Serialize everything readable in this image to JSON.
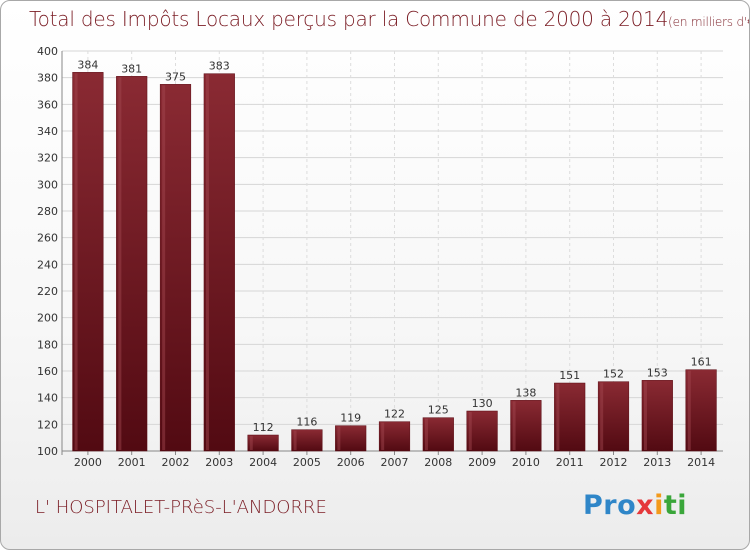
{
  "header": {
    "title": "Total des Impôts Locaux perçus par la Commune de 2000 à 2014",
    "unit": "(en milliers d'€)"
  },
  "footer": {
    "commune": "L' HOSPITALET-PRèS-L'ANDORRE",
    "brand": {
      "p1": "Pro",
      "p2": "x",
      "p3": "i",
      "p4": "ti"
    }
  },
  "colors": {
    "bar": "#7a1c24",
    "bar_light": "#9a3a42",
    "bar_dark": "#5a0a12",
    "text": "#7a1c24",
    "grid": "#d8d8d8",
    "label": "#333333"
  },
  "chart_data": {
    "type": "bar",
    "title": "Total des Impôts Locaux perçus par la Commune de 2000 à 2014",
    "categories": [
      "2000",
      "2001",
      "2002",
      "2003",
      "2004",
      "2005",
      "2006",
      "2007",
      "2008",
      "2009",
      "2010",
      "2011",
      "2012",
      "2013",
      "2014"
    ],
    "values": [
      384,
      381,
      375,
      383,
      112,
      116,
      119,
      122,
      125,
      130,
      138,
      151,
      152,
      153,
      161
    ],
    "ylim": [
      100,
      400
    ],
    "yticks": [
      100,
      120,
      140,
      160,
      180,
      200,
      220,
      240,
      260,
      280,
      300,
      320,
      340,
      360,
      380,
      400
    ],
    "grid": true,
    "data_labels": true
  }
}
